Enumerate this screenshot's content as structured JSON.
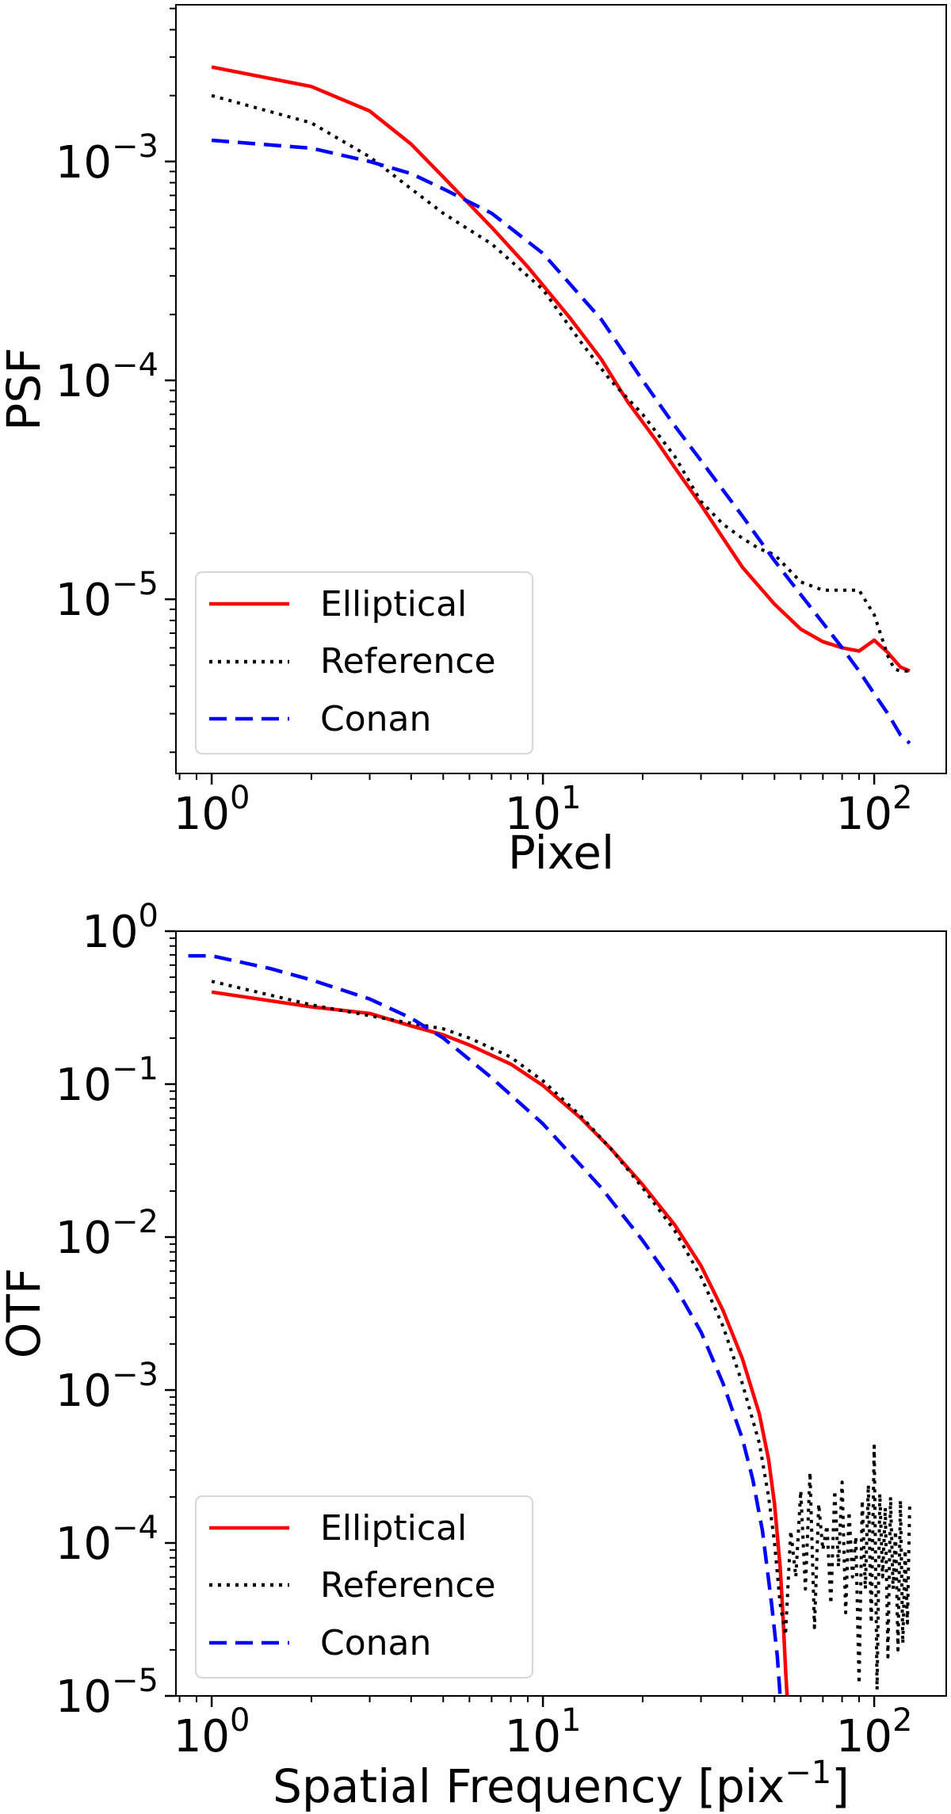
{
  "chart_data": [
    {
      "type": "line",
      "xscale": "log",
      "yscale": "log",
      "xlabel": "Pixel",
      "ylabel": "PSF",
      "xlim": [
        0.78,
        165
      ],
      "ylim": [
        1.6e-06,
        0.0052
      ],
      "xticks": [
        {
          "value": 1,
          "base": "10",
          "exp": "0"
        },
        {
          "value": 10,
          "base": "10",
          "exp": "1"
        },
        {
          "value": 100,
          "base": "10",
          "exp": "2"
        }
      ],
      "yticks": [
        {
          "value": 0.001,
          "base": "10",
          "exp": "−3"
        },
        {
          "value": 0.0001,
          "base": "10",
          "exp": "−4"
        },
        {
          "value": 1e-05,
          "base": "10",
          "exp": "−5"
        }
      ],
      "legend_position": "lower-left",
      "series": [
        {
          "name": "Elliptical",
          "color": "#ff0000",
          "style": "solid",
          "x": [
            1,
            2,
            3,
            4,
            5,
            7,
            9,
            12,
            15,
            18,
            22,
            25,
            30,
            35,
            40,
            50,
            60,
            70,
            80,
            90,
            100,
            110,
            120,
            128
          ],
          "y": [
            0.0027,
            0.0022,
            0.0017,
            0.0012,
            0.00085,
            0.0005,
            0.00033,
            0.000195,
            0.000125,
            8e-05,
            5.3e-05,
            4e-05,
            2.7e-05,
            1.9e-05,
            1.4e-05,
            9.5e-06,
            7.3e-06,
            6.4e-06,
            6e-06,
            5.8e-06,
            6.5e-06,
            5.7e-06,
            4.9e-06,
            4.7e-06
          ]
        },
        {
          "name": "Reference",
          "color": "#000000",
          "style": "dotted",
          "x": [
            1,
            2,
            3,
            4,
            5,
            7,
            10,
            13,
            16,
            20,
            25,
            30,
            35,
            40,
            45,
            50,
            60,
            70,
            80,
            90,
            100,
            110,
            115,
            120,
            128
          ],
          "y": [
            0.002,
            0.0015,
            0.00105,
            0.00075,
            0.00058,
            0.00042,
            0.00026,
            0.00015,
            0.0001,
            7e-05,
            4.5e-05,
            2.8e-05,
            2.2e-05,
            1.9e-05,
            1.7e-05,
            1.6e-05,
            1.2e-05,
            1.1e-05,
            1.1e-05,
            1.1e-05,
            8.5e-06,
            5.5e-06,
            4.8e-06,
            4.7e-06,
            4.7e-06
          ]
        },
        {
          "name": "Conan",
          "color": "#0000ff",
          "style": "dashed",
          "x": [
            1,
            2,
            3,
            4,
            5,
            7,
            10,
            15,
            20,
            25,
            30,
            40,
            50,
            60,
            70,
            80,
            90,
            100,
            110,
            120,
            128
          ],
          "y": [
            0.00125,
            0.00115,
            0.001,
            0.00088,
            0.00075,
            0.00058,
            0.00038,
            0.00019,
            0.0001,
            6.2e-05,
            4.3e-05,
            2.4e-05,
            1.5e-05,
            1.05e-05,
            7.8e-06,
            6e-06,
            4.7e-06,
            3.7e-06,
            3e-06,
            2.4e-06,
            2.2e-06
          ]
        }
      ]
    },
    {
      "type": "line",
      "xscale": "log",
      "yscale": "log",
      "xlabel": "Spatial Frequency [pix−1]",
      "xlabel_base": "Spatial Frequency [pix",
      "xlabel_sup": "−1",
      "xlabel_end": "]",
      "ylabel": "OTF",
      "xlim": [
        0.78,
        165
      ],
      "ylim": [
        1e-05,
        1
      ],
      "xticks": [
        {
          "value": 1,
          "base": "10",
          "exp": "0"
        },
        {
          "value": 10,
          "base": "10",
          "exp": "1"
        },
        {
          "value": 100,
          "base": "10",
          "exp": "2"
        }
      ],
      "yticks": [
        {
          "value": 1,
          "base": "10",
          "exp": "0"
        },
        {
          "value": 0.1,
          "base": "10",
          "exp": "−1"
        },
        {
          "value": 0.01,
          "base": "10",
          "exp": "−2"
        },
        {
          "value": 0.001,
          "base": "10",
          "exp": "−3"
        },
        {
          "value": 0.0001,
          "base": "10",
          "exp": "−4"
        },
        {
          "value": 1e-05,
          "base": "10",
          "exp": "−5"
        }
      ],
      "legend_position": "lower-left",
      "series": [
        {
          "name": "Elliptical",
          "color": "#ff0000",
          "style": "solid",
          "x": [
            1,
            2,
            3,
            4,
            5,
            6,
            8,
            10,
            13,
            16,
            20,
            25,
            30,
            35,
            40,
            45,
            48,
            50,
            52,
            53,
            54,
            54.6
          ],
          "y": [
            0.4,
            0.32,
            0.29,
            0.24,
            0.21,
            0.18,
            0.135,
            0.098,
            0.06,
            0.038,
            0.022,
            0.012,
            0.0065,
            0.0033,
            0.0016,
            0.0007,
            0.00035,
            0.00018,
            7e-05,
            3.5e-05,
            1.5e-05,
            1e-05
          ]
        },
        {
          "name": "Reference",
          "color": "#000000",
          "style": "dotted",
          "x": [
            1,
            2,
            3,
            4,
            5,
            6,
            8,
            10,
            13,
            16,
            20,
            25,
            30,
            35,
            40,
            45,
            48,
            50,
            52,
            54,
            56,
            58,
            60,
            62,
            64,
            66,
            68,
            70,
            72,
            74,
            76,
            78,
            80,
            82,
            84,
            86,
            88,
            90,
            92,
            94,
            96,
            98,
            100,
            102,
            104,
            106,
            108,
            110,
            112,
            114,
            116,
            118,
            120,
            122,
            124,
            126,
            128
          ],
          "y": [
            0.47,
            0.33,
            0.28,
            0.25,
            0.23,
            0.2,
            0.15,
            0.105,
            0.062,
            0.038,
            0.021,
            0.011,
            0.0055,
            0.0026,
            0.0011,
            0.00045,
            0.0002,
            0.0001,
            4e-05,
            2.5e-05,
            0.00012,
            6e-05,
            0.00022,
            5e-05,
            0.00029,
            2.8e-05,
            0.00018,
            9e-05,
            0.00013,
            4e-05,
            0.00022,
            7e-05,
            0.00025,
            3.5e-05,
            0.00016,
            6e-05,
            0.00011,
            1.2e-05,
            0.00019,
            5e-05,
            0.00024,
            3e-05,
            0.00043,
            1.1e-05,
            0.00021,
            6e-05,
            0.00017,
            1.8e-05,
            0.0002,
            5e-05,
            0.00012,
            2e-05,
            0.00019,
            2.2e-05,
            9e-05,
            3e-05,
            0.00018
          ]
        },
        {
          "name": "Conan",
          "color": "#0000ff",
          "style": "dashed",
          "x": [
            0.85,
            1,
            1.5,
            2,
            3,
            4,
            5,
            7,
            10,
            15,
            20,
            25,
            30,
            35,
            40,
            43,
            46,
            49,
            51,
            52
          ],
          "y": [
            0.69,
            0.69,
            0.57,
            0.48,
            0.36,
            0.27,
            0.2,
            0.11,
            0.055,
            0.021,
            0.0095,
            0.0048,
            0.0024,
            0.0011,
            0.00048,
            0.00026,
            0.00012,
            4e-05,
            1.8e-05,
            1e-05
          ]
        }
      ]
    }
  ]
}
